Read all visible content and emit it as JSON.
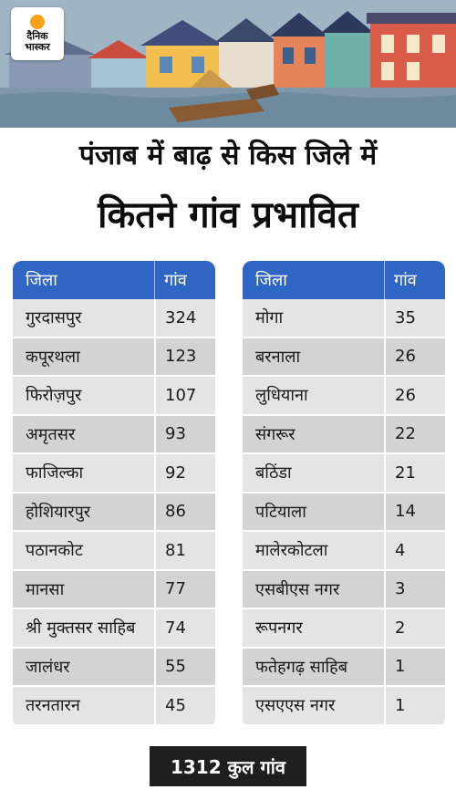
{
  "logo": {
    "line1": "दैनिक",
    "line2": "भास्कर"
  },
  "title": {
    "line1": "पंजाब में बाढ़ से किस जिले में",
    "line2": "कितने गांव प्रभावित"
  },
  "headers": {
    "district": "जिला",
    "villages": "गांव"
  },
  "left_table": [
    {
      "district": "गुरदासपुर",
      "villages": "324"
    },
    {
      "district": "कपूरथला",
      "villages": "123"
    },
    {
      "district": "फिरोज़पुर",
      "villages": "107"
    },
    {
      "district": "अमृतसर",
      "villages": "93"
    },
    {
      "district": "फाजिल्का",
      "villages": "92"
    },
    {
      "district": "होशियारपुर",
      "villages": "86"
    },
    {
      "district": "पठानकोट",
      "villages": "81"
    },
    {
      "district": "मानसा",
      "villages": "77"
    },
    {
      "district": "श्री मुक्तसर साहिब",
      "villages": "74"
    },
    {
      "district": "जालंधर",
      "villages": "55"
    },
    {
      "district": "तरनतारन",
      "villages": "45"
    }
  ],
  "right_table": [
    {
      "district": "मोगा",
      "villages": "35"
    },
    {
      "district": "बरनाला",
      "villages": "26"
    },
    {
      "district": "लुधियाना",
      "villages": "26"
    },
    {
      "district": "संगरूर",
      "villages": "22"
    },
    {
      "district": "बठिंडा",
      "villages": "21"
    },
    {
      "district": "पटियाला",
      "villages": "14"
    },
    {
      "district": "मालेरकोटला",
      "villages": "4"
    },
    {
      "district": "एसबीएस नगर",
      "villages": "3"
    },
    {
      "district": "रूपनगर",
      "villages": "2"
    },
    {
      "district": "फतेहगढ़ साहिब",
      "villages": "1"
    },
    {
      "district": "एसएएस नगर",
      "villages": "1"
    }
  ],
  "total": "1312 कुल गांव",
  "colors": {
    "header_blue": "#2f66c4",
    "total_bg": "#1f1f1f",
    "logo_orange": "#f7a21b"
  }
}
